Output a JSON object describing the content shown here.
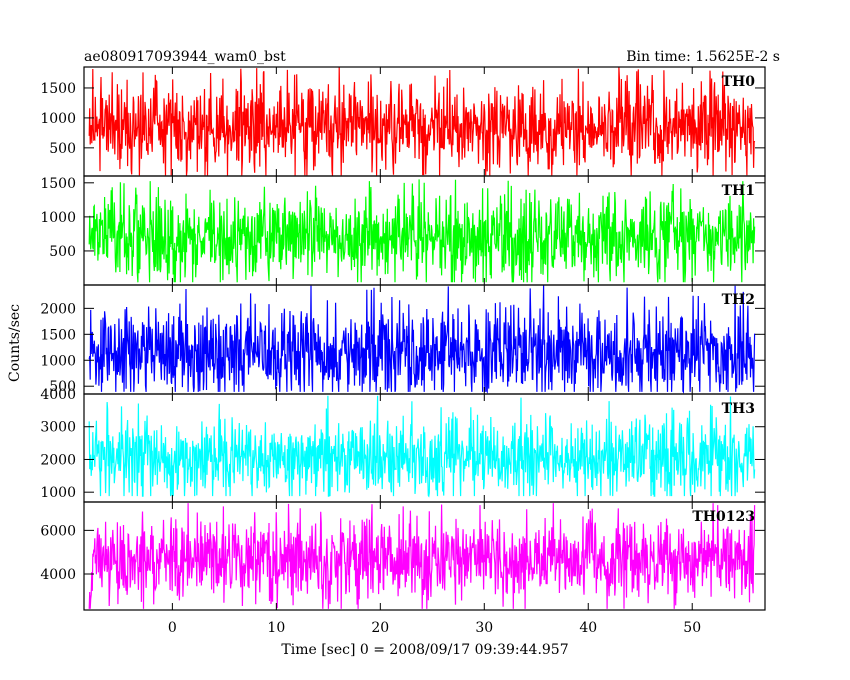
{
  "title_left": "ae080917093944_wam0_bst",
  "title_right": "Bin time: 1.5625E-2 s",
  "chart_data": {
    "type": "line",
    "shared_x": {
      "label": "Time [sec] 0 = 2008/09/17 09:39:44.957",
      "range": [
        -8.5,
        57
      ],
      "data_range": [
        -8.0,
        56.0
      ],
      "ticks": [
        0,
        10,
        20,
        30,
        40,
        50
      ],
      "tick_labels": [
        "0",
        "10",
        "20",
        "30",
        "40",
        "50"
      ]
    },
    "ylabel": "Counts/sec",
    "panels": [
      {
        "name": "TH0",
        "color": "#ff0000",
        "ylim": [
          30,
          1850
        ],
        "ticks": [
          500,
          1000,
          1500
        ],
        "tick_labels": [
          "500",
          "1000",
          "1500"
        ],
        "mean": 850,
        "typical_min": 200,
        "typical_max": 1500,
        "peak_max": 1850,
        "min": 40
      },
      {
        "name": "TH1",
        "color": "#00ff00",
        "ylim": [
          0,
          1600
        ],
        "ticks": [
          500,
          1000,
          1500
        ],
        "tick_labels": [
          "500",
          "1000",
          "1500"
        ],
        "mean": 700,
        "typical_min": 150,
        "typical_max": 1300,
        "peak_max": 1550,
        "min": 40
      },
      {
        "name": "TH2",
        "color": "#0000ff",
        "ylim": [
          350,
          2450
        ],
        "ticks": [
          500,
          1000,
          1500,
          2000
        ],
        "tick_labels": [
          "500",
          "1000",
          "1500",
          "2000"
        ],
        "mean": 1150,
        "typical_min": 550,
        "typical_max": 2100,
        "peak_max": 2450,
        "min": 390
      },
      {
        "name": "TH3",
        "color": "#00ffff",
        "ylim": [
          700,
          4000
        ],
        "ticks": [
          1000,
          2000,
          3000,
          4000
        ],
        "tick_labels": [
          "1000",
          "2000",
          "3000",
          "4000"
        ],
        "mean": 2050,
        "typical_min": 1150,
        "typical_max": 3300,
        "peak_max": 3950,
        "min": 880
      },
      {
        "name": "TH0123",
        "color": "#ff00ff",
        "ylim": [
          2350,
          7300
        ],
        "ticks": [
          4000,
          6000
        ],
        "tick_labels": [
          "4000",
          "6000"
        ],
        "mean": 4700,
        "typical_min": 3100,
        "typical_max": 6500,
        "peak_max": 7250,
        "min": 2400
      }
    ]
  }
}
